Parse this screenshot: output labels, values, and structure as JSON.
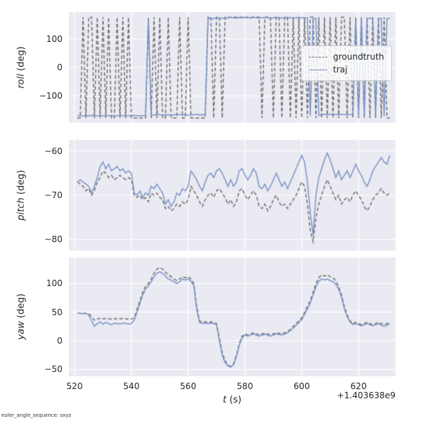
{
  "style": {
    "panel_bg": "#eaeaf2",
    "grid": "#ffffff",
    "figure_bg": "#ffffff"
  },
  "footer_note": "euler_angle_sequence: sxyz",
  "x_axis": {
    "label_word": "t",
    "label_unit": "(s)",
    "offset": "+1.403638e9",
    "ticks": [
      520,
      540,
      560,
      580,
      600,
      620
    ],
    "lim": [
      518,
      633
    ],
    "x": [
      521,
      522,
      523,
      524,
      525,
      526,
      527,
      528,
      529,
      530,
      531,
      532,
      533,
      534,
      535,
      536,
      537,
      538,
      539,
      540,
      541,
      542,
      543,
      544,
      545,
      546,
      547,
      548,
      549,
      550,
      551,
      552,
      553,
      554,
      555,
      556,
      557,
      558,
      559,
      560,
      561,
      562,
      563,
      564,
      565,
      566,
      567,
      568,
      569,
      570,
      571,
      572,
      573,
      574,
      575,
      576,
      577,
      578,
      579,
      580,
      581,
      582,
      583,
      584,
      585,
      586,
      587,
      588,
      589,
      590,
      591,
      592,
      593,
      594,
      595,
      596,
      597,
      598,
      599,
      600,
      601,
      602,
      603,
      604,
      605,
      606,
      607,
      608,
      609,
      610,
      611,
      612,
      613,
      614,
      615,
      616,
      617,
      618,
      619,
      620,
      621,
      622,
      623,
      624,
      625,
      626,
      627,
      628,
      629,
      630,
      631
    ]
  },
  "legend": {
    "items": [
      {
        "label": "groundtruth",
        "color": "#6f6f6f",
        "dash": true
      },
      {
        "label": "traj",
        "color": "#7a94c7",
        "dash": false
      }
    ]
  },
  "chart_data": [
    {
      "type": "line",
      "ylabel_word": "roll",
      "ylabel_unit": "(deg)",
      "ylim": [
        -195,
        195
      ],
      "yticks": [
        -100,
        0,
        100
      ],
      "series": [
        {
          "name": "groundtruth",
          "color": "#6f6f6f",
          "dash": true,
          "values": [
            -178,
            -178,
            177,
            -178,
            177,
            177,
            -178,
            177,
            -178,
            177,
            -178,
            177,
            -178,
            -178,
            177,
            -178,
            177,
            -178,
            177,
            -178,
            -178,
            -178,
            -178,
            -178,
            -178,
            177,
            -178,
            177,
            -178,
            177,
            -178,
            -178,
            177,
            -178,
            -178,
            -178,
            177,
            -178,
            -178,
            177,
            -178,
            -178,
            -178,
            -178,
            -178,
            -178,
            177,
            177,
            -178,
            177,
            177,
            -178,
            177,
            177,
            177,
            177,
            177,
            177,
            177,
            177,
            177,
            177,
            177,
            177,
            177,
            -178,
            177,
            177,
            177,
            -178,
            177,
            177,
            -178,
            177,
            177,
            -178,
            177,
            -178,
            177,
            -178,
            177,
            -178,
            177,
            177,
            -178,
            177,
            -178,
            177,
            -178,
            177,
            -178,
            177,
            -178,
            177,
            177,
            -178,
            177,
            -178,
            177,
            -178,
            177,
            -178,
            177,
            -178,
            177,
            -178,
            177,
            -178,
            177,
            -178,
            -178
          ]
        },
        {
          "name": "traj",
          "color": "#7a94c7",
          "dash": false,
          "values": [
            -170,
            -170,
            -171,
            -170,
            -170,
            -169,
            -170,
            -170,
            -171,
            -170,
            -170,
            -170,
            -170,
            -171,
            -170,
            -170,
            -170,
            -170,
            -170,
            -170,
            -169,
            -170,
            -170,
            -170,
            -168,
            172,
            -170,
            -167,
            -165,
            -166,
            -168,
            -167,
            -166,
            -168,
            -167,
            -165,
            -166,
            -167,
            -166,
            -168,
            -167,
            -166,
            -165,
            -167,
            -166,
            -167,
            173,
            174,
            172,
            175,
            173,
            174,
            172,
            175,
            176,
            175,
            174,
            176,
            175,
            176,
            175,
            174,
            176,
            175,
            174,
            175,
            176,
            175,
            174,
            175,
            176,
            175,
            174,
            175,
            176,
            175,
            174,
            175,
            176,
            175,
            174,
            175,
            -170,
            172,
            173,
            -169,
            -166,
            -165,
            -166,
            -165,
            -166,
            -165,
            -166,
            -165,
            -166,
            -165,
            -166,
            -165,
            172,
            -168,
            173,
            -169,
            172,
            174,
            173,
            -170,
            172,
            173,
            -171,
            172,
            173
          ]
        }
      ]
    },
    {
      "type": "line",
      "ylabel_word": "pitch",
      "ylabel_unit": "(deg)",
      "ylim": [
        -82.5,
        -57.5
      ],
      "yticks": [
        -80,
        -70,
        -60
      ],
      "series": [
        {
          "name": "groundtruth",
          "color": "#6f6f6f",
          "dash": true,
          "values": [
            -67,
            -67.5,
            -68,
            -69,
            -68.5,
            -70,
            -69,
            -67,
            -66,
            -64.5,
            -65,
            -66,
            -65.5,
            -66.5,
            -66,
            -65.5,
            -66,
            -66.5,
            -66,
            -66.5,
            -70,
            -70.5,
            -70,
            -71,
            -70.5,
            -71.5,
            -69.5,
            -70,
            -69.5,
            -70.5,
            -71,
            -73,
            -72.5,
            -73.5,
            -73,
            -72,
            -72.5,
            -71.5,
            -72,
            -71,
            -68,
            -69,
            -70,
            -71.5,
            -72.5,
            -71,
            -70,
            -69.5,
            -70.5,
            -69,
            -68.5,
            -69.5,
            -70.5,
            -72,
            -71,
            -72.5,
            -71.5,
            -69,
            -68.5,
            -70,
            -71,
            -70,
            -69,
            -70,
            -72.5,
            -73,
            -72,
            -73.5,
            -72.5,
            -71,
            -70,
            -71.5,
            -72.5,
            -72,
            -73,
            -72,
            -71,
            -70,
            -68.5,
            -67,
            -68,
            -72,
            -78,
            -80.5,
            -75,
            -72,
            -70,
            -68,
            -66.5,
            -68,
            -69.5,
            -71,
            -70,
            -72,
            -71,
            -70.5,
            -71.5,
            -70,
            -69,
            -70,
            -71,
            -72.5,
            -73.5,
            -72.5,
            -71,
            -70,
            -69.5,
            -68.5,
            -69.5,
            -70,
            -69.5
          ]
        },
        {
          "name": "traj",
          "color": "#7a94c7",
          "dash": false,
          "values": [
            -67,
            -66.5,
            -67,
            -67.5,
            -68,
            -69.5,
            -68,
            -66,
            -63.5,
            -62.5,
            -64,
            -63,
            -64.5,
            -64,
            -63.5,
            -64.5,
            -64,
            -65,
            -64.5,
            -65,
            -69.5,
            -70,
            -69,
            -70.5,
            -69.5,
            -70,
            -68,
            -68.5,
            -67.5,
            -68.5,
            -69.5,
            -72,
            -71,
            -72.5,
            -71.5,
            -69.5,
            -70,
            -68.5,
            -69,
            -68,
            -64.5,
            -65.5,
            -66.5,
            -68,
            -69,
            -67,
            -65.5,
            -65,
            -66,
            -64.5,
            -64,
            -65,
            -66.5,
            -68,
            -66.5,
            -68,
            -67,
            -64.5,
            -64,
            -65.5,
            -66.5,
            -65.5,
            -64,
            -65,
            -68,
            -68.5,
            -67.5,
            -69,
            -68,
            -66.5,
            -65,
            -66.5,
            -68,
            -67,
            -68.5,
            -67,
            -65.5,
            -64,
            -62.5,
            -61,
            -62.5,
            -67,
            -74,
            -79,
            -70,
            -66,
            -64,
            -62,
            -60.5,
            -62,
            -64,
            -66,
            -64.5,
            -66.5,
            -65.5,
            -64.5,
            -66,
            -64.5,
            -63,
            -64.5,
            -65.5,
            -67,
            -68,
            -66.5,
            -64.5,
            -63.5,
            -62.5,
            -61.5,
            -62.5,
            -63,
            -61
          ]
        }
      ]
    },
    {
      "type": "line",
      "ylabel_word": "yaw",
      "ylabel_unit": "(deg)",
      "ylim": [
        -62,
        145
      ],
      "yticks": [
        -50,
        0,
        50,
        100
      ],
      "series": [
        {
          "name": "groundtruth",
          "color": "#6f6f6f",
          "dash": true,
          "values": [
            48,
            48,
            48,
            48,
            47,
            42,
            36,
            38,
            39,
            38,
            39,
            38,
            38,
            39,
            38,
            38,
            39,
            38,
            38,
            38,
            40,
            55,
            70,
            85,
            95,
            100,
            108,
            118,
            125,
            128,
            125,
            120,
            115,
            112,
            108,
            105,
            108,
            112,
            110,
            112,
            108,
            100,
            60,
            35,
            32,
            33,
            32,
            33,
            32,
            30,
            5,
            -20,
            -35,
            -42,
            -45,
            -40,
            -25,
            -5,
            8,
            12,
            10,
            12,
            14,
            12,
            10,
            12,
            13,
            12,
            10,
            12,
            14,
            13,
            12,
            14,
            16,
            20,
            25,
            30,
            35,
            40,
            50,
            60,
            70,
            85,
            100,
            110,
            115,
            113,
            115,
            112,
            110,
            105,
            95,
            80,
            60,
            45,
            35,
            30,
            32,
            30,
            28,
            30,
            32,
            30,
            28,
            30,
            32,
            30,
            28,
            30,
            32
          ]
        },
        {
          "name": "traj",
          "color": "#7a94c7",
          "dash": false,
          "values": [
            48,
            48,
            47,
            48,
            45,
            35,
            25,
            30,
            33,
            29,
            32,
            30,
            28,
            31,
            30,
            29,
            31,
            30,
            29,
            30,
            36,
            50,
            65,
            80,
            90,
            96,
            103,
            112,
            118,
            120,
            118,
            113,
            108,
            106,
            103,
            100,
            103,
            108,
            106,
            108,
            104,
            96,
            55,
            32,
            30,
            31,
            30,
            31,
            30,
            28,
            0,
            -25,
            -38,
            -44,
            -46,
            -42,
            -28,
            -8,
            5,
            10,
            8,
            10,
            12,
            10,
            8,
            10,
            11,
            10,
            8,
            10,
            12,
            11,
            10,
            12,
            14,
            18,
            22,
            27,
            32,
            37,
            46,
            56,
            66,
            80,
            94,
            104,
            108,
            106,
            108,
            105,
            103,
            99,
            90,
            76,
            56,
            42,
            33,
            28,
            30,
            28,
            26,
            28,
            30,
            28,
            26,
            28,
            30,
            27,
            25,
            27,
            30
          ]
        }
      ]
    }
  ]
}
